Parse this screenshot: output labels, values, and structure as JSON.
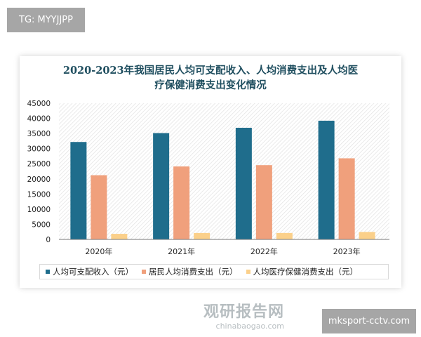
{
  "watermarks": {
    "top_left": "TG: MYYJJPP",
    "bottom_right": "mksport-cctv.com",
    "logo_cn": "观研报告网",
    "logo_url": "chinabaogao.com"
  },
  "chart_data": {
    "type": "bar",
    "title": "2020-2023年我国居民人均可支配收入、人均消费支出及人均医疗保健消费支出变化情况",
    "title_lines": [
      "2020-2023年我国居民人均可支配收入、人均消费支出及人均医",
      "疗保健消费支出变化情况"
    ],
    "categories": [
      "2020年",
      "2021年",
      "2022年",
      "2023年"
    ],
    "series": [
      {
        "name": "人均可支配收入（元）",
        "color": "#1f6d8c",
        "values": [
          32189,
          35128,
          36883,
          39218
        ]
      },
      {
        "name": "居民人均消费支出（元）",
        "color": "#f0a07c",
        "values": [
          21210,
          24100,
          24538,
          26796
        ]
      },
      {
        "name": "人均医疗保健消费支出（元）",
        "color": "#fbd08a",
        "values": [
          1843,
          2115,
          2120,
          2460
        ]
      }
    ],
    "ylim": [
      0,
      45000
    ],
    "yticks": [
      0,
      5000,
      10000,
      15000,
      20000,
      25000,
      30000,
      35000,
      40000,
      45000
    ],
    "grid": false,
    "background": "hatched",
    "legend": "bottom"
  }
}
